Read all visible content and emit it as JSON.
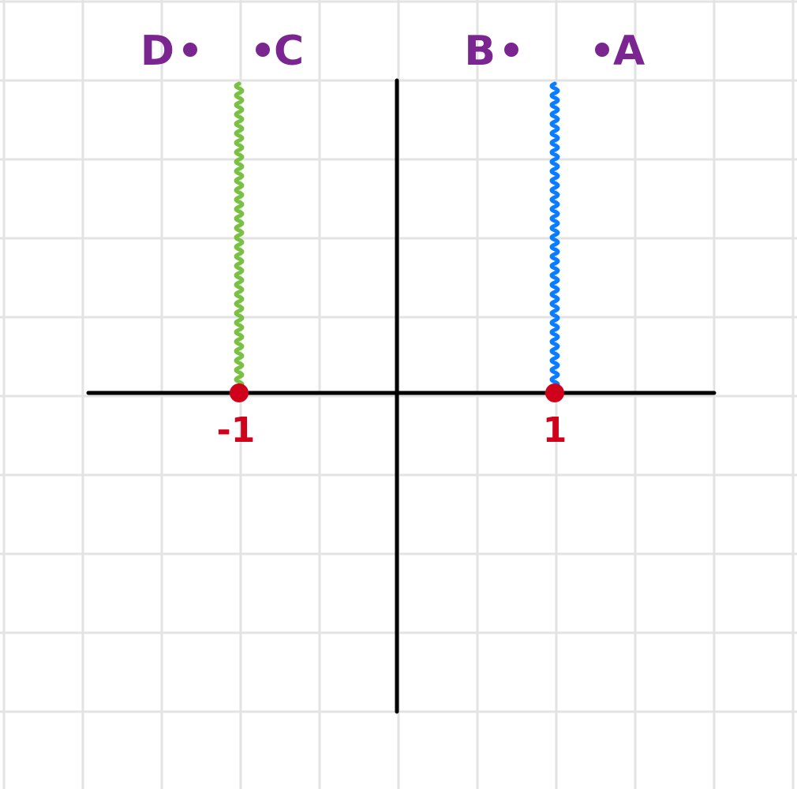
{
  "colors": {
    "background": "#ffffff",
    "grid": "#e3e3e3",
    "axis": "#000000",
    "branch_point": "#d0021b",
    "left_cut": "#7ac143",
    "right_cut": "#0a7cff",
    "point_label": "#7b2590"
  },
  "diagram": {
    "branch_points": [
      {
        "label": "-1",
        "x": -1,
        "y": 0
      },
      {
        "label": "1",
        "x": 1,
        "y": 0
      }
    ],
    "cuts": [
      {
        "from": [
          -1,
          0
        ],
        "to": [
          -1,
          4
        ],
        "color_key": "left_cut"
      },
      {
        "from": [
          1,
          0
        ],
        "to": [
          1,
          4
        ],
        "color_key": "right_cut"
      }
    ],
    "points": [
      {
        "label": "A",
        "x": 1.3,
        "y": 2.2,
        "label_side": "right"
      },
      {
        "label": "B",
        "x": 0.7,
        "y": 2.2,
        "label_side": "left"
      },
      {
        "label": "C",
        "x": -0.9,
        "y": 2.2,
        "label_side": "right"
      },
      {
        "label": "D",
        "x": -1.3,
        "y": 2.2,
        "label_side": "left"
      }
    ]
  }
}
